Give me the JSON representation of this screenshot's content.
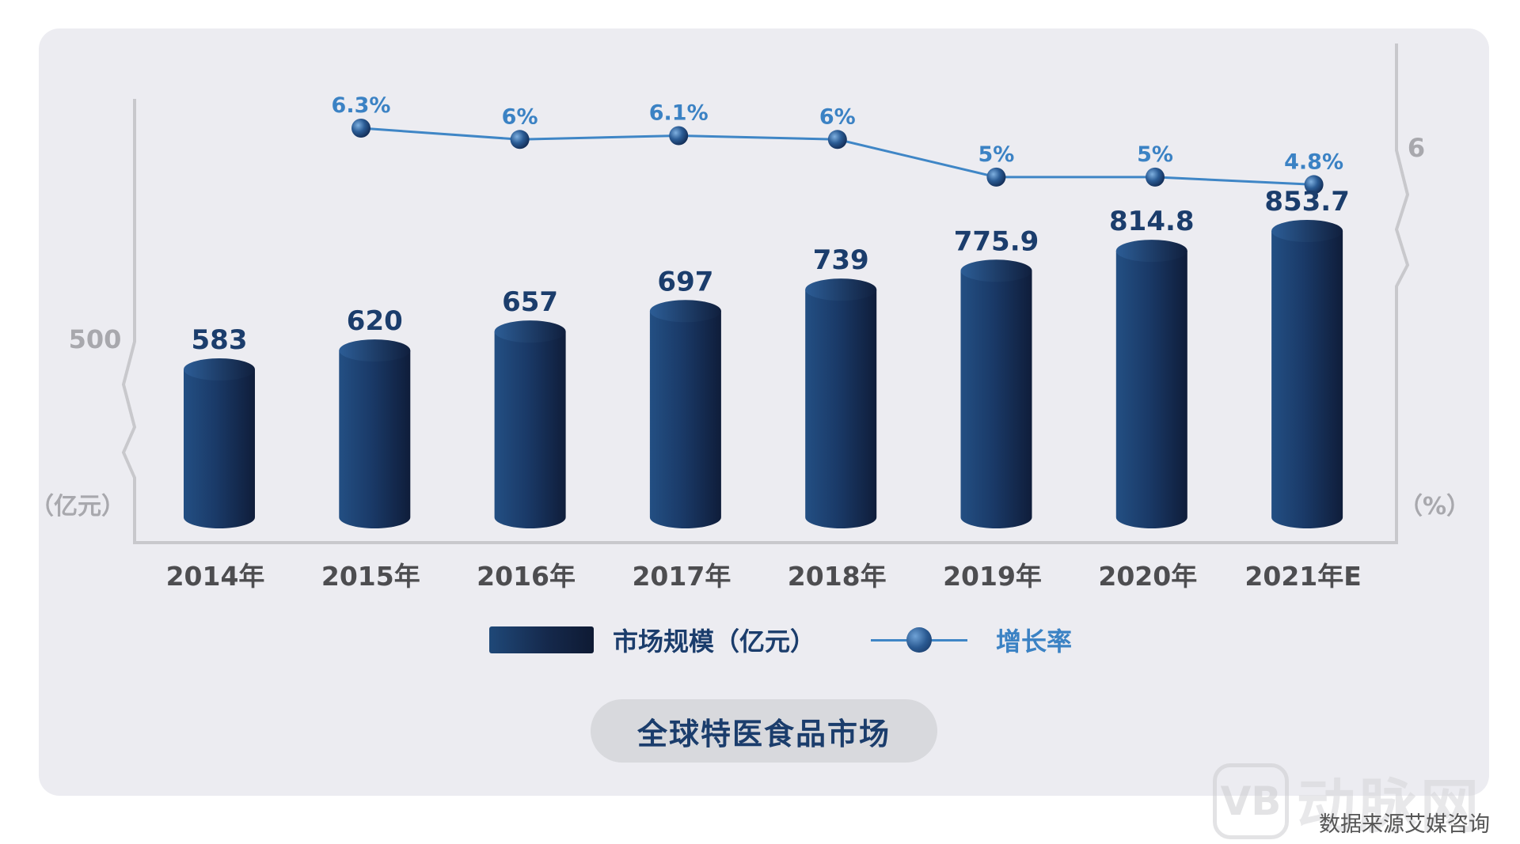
{
  "chart_data": {
    "type": "bar+line",
    "title": "全球特医食品市场",
    "categories": [
      "2014年",
      "2015年",
      "2016年",
      "2017年",
      "2018年",
      "2019年",
      "2020年",
      "2021年E"
    ],
    "series": [
      {
        "name": "市场规模（亿元）",
        "type": "bar",
        "axis": "left",
        "values": [
          583,
          620,
          657,
          697,
          739,
          775.9,
          814.8,
          853.7
        ],
        "labels": [
          "583",
          "620",
          "657",
          "697",
          "739",
          "775.9",
          "814.8",
          "853.7"
        ]
      },
      {
        "name": "增长率",
        "type": "line",
        "axis": "right",
        "values": [
          null,
          6.3,
          6,
          6.1,
          6,
          5,
          5,
          4.8
        ],
        "labels": [
          "",
          "6.3%",
          "6%",
          "6.1%",
          "6%",
          "5%",
          "5%",
          "4.8%"
        ]
      }
    ],
    "left_axis": {
      "unit_label": "（亿元）",
      "break_tick": "500",
      "range": [
        400,
        900
      ],
      "broken": true
    },
    "right_axis": {
      "unit_label": "（%）",
      "break_tick": "6",
      "range": [
        0,
        7
      ],
      "broken": true
    },
    "grid": false,
    "legend_position": "bottom-center",
    "colors": {
      "bar": "#1c3c68",
      "line": "#3f86c6",
      "value_label": "#1b3d6c",
      "rate_label": "#3b82c4",
      "axis": "#c8c8cc",
      "tick_text": "#a8a8ad"
    }
  },
  "legend": {
    "bar_label": "市场规模（亿元）",
    "line_label": "增长率"
  },
  "caption": "全球特医食品市场",
  "source_note": "数据来源艾媒咨询",
  "watermark": {
    "logo_glyph": "VB",
    "text": "动脉网"
  }
}
